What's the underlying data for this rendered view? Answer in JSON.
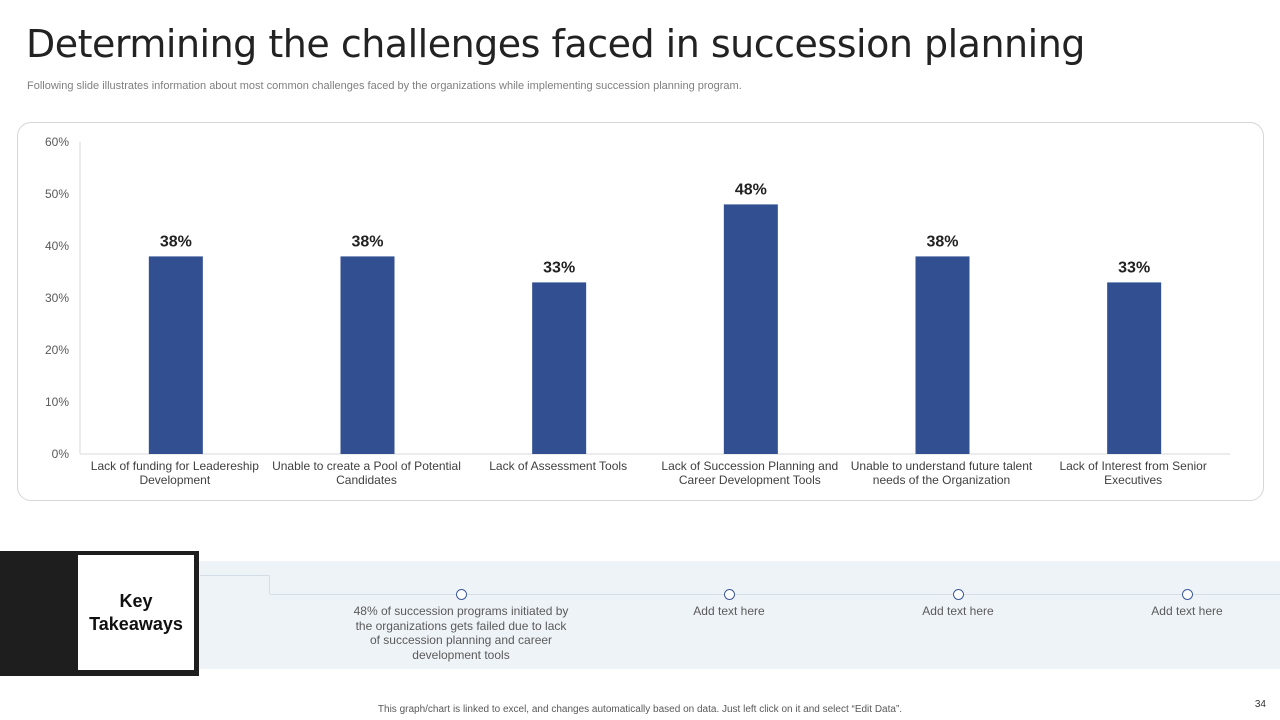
{
  "slide": {
    "title": "Determining the challenges faced in succession planning",
    "subtitle": "Following slide illustrates information about most common challenges faced by the organizations while implementing succession planning program.",
    "footer_note": "This graph/chart is linked to excel, and changes automatically based on data. Just left click on it and select “Edit Data”.",
    "page_number": "34"
  },
  "chart_data": {
    "type": "bar",
    "categories": [
      "Lack of funding for Leadereship Development",
      "Unable to create a Pool of Potential Candidates",
      "Lack of Assessment Tools",
      "Lack of Succession Planning and Career Development Tools",
      "Unable to understand future talent needs of the Organization",
      "Lack of Interest from Senior Executives"
    ],
    "values": [
      38,
      38,
      33,
      48,
      38,
      33
    ],
    "data_labels": [
      "38%",
      "38%",
      "33%",
      "48%",
      "38%",
      "33%"
    ],
    "y_ticks": [
      "0%",
      "10%",
      "20%",
      "30%",
      "40%",
      "50%",
      "60%"
    ],
    "ylim": [
      0,
      60
    ],
    "bar_color": "#314f91",
    "grid": false,
    "legend": "none"
  },
  "takeaways": {
    "heading": "Key Takeaways",
    "items": [
      "48% of succession programs initiated by the organizations gets failed due to lack of succession planning and career development tools",
      "Add text here",
      "Add text here",
      "Add text here"
    ],
    "accent_color": "#3d5a99"
  }
}
